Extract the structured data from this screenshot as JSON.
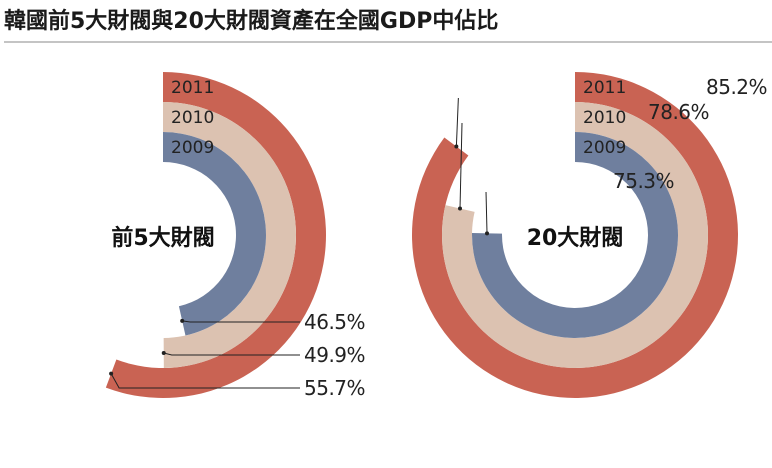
{
  "chart_data": {
    "type": "radial-bar",
    "title": "韓國前5大財閥與20大財閥資產在全國GDP中佔比",
    "colors": {
      "2011": "#c96353",
      "2010": "#dcc2b1",
      "2009": "#6f7f9e"
    },
    "charts": [
      {
        "center_label": "前5大財閥",
        "series": [
          {
            "year": "2011",
            "value": 55.7,
            "value_label": "55.7%"
          },
          {
            "year": "2010",
            "value": 49.9,
            "value_label": "49.9%"
          },
          {
            "year": "2009",
            "value": 46.5,
            "value_label": "46.5%"
          }
        ]
      },
      {
        "center_label": "20大財閥",
        "series": [
          {
            "year": "2011",
            "value": 85.2,
            "value_label": "85.2%"
          },
          {
            "year": "2010",
            "value": 78.6,
            "value_label": "78.6%"
          },
          {
            "year": "2009",
            "value": 75.3,
            "value_label": "75.3%"
          }
        ]
      }
    ]
  }
}
